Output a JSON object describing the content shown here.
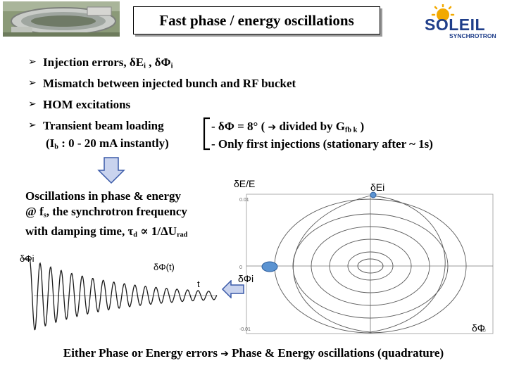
{
  "title": "Fast phase / energy oscillations",
  "logo": {
    "brand": "SOLEIL",
    "sub": "SYNCHROTRON"
  },
  "bullets": [
    {
      "pre": "Injection errors, ",
      "d1": "δ",
      "v1": "E",
      "s1": "i",
      "mid": " , ",
      "d2": "δ",
      "v2": "Φ",
      "s2": "i"
    },
    {
      "text": "Mismatch between injected bunch and RF bucket"
    },
    {
      "text": "HOM excitations"
    },
    {
      "text": "Transient beam loading"
    }
  ],
  "beam_loading_detail": {
    "open": "(I",
    "sub": "b",
    "rest": " : 0 - 20 mA instantly)"
  },
  "brace_notes": {
    "line1_pre": "- δΦ = 8° ( ",
    "line1_arrow": "➔",
    "line1_post": " divided by G",
    "line1_sub": "fb k",
    "line1_end": " )",
    "line2": "- Only first injections (stationary after ~ 1s)"
  },
  "oscillation_text": {
    "line1": "Oscillations in phase & energy",
    "line2_pre": "@ f",
    "line2_sub": "s",
    "line2_post": ", the synchrotron frequency",
    "line3_pre": "with damping time, τ",
    "line3_sub": "d",
    "line3_mid": " ∝ 1/ΔU",
    "line3_sub2": "rad"
  },
  "waveform_labels": {
    "y": "δΦi",
    "curve": "δΦ(t)",
    "t": "t"
  },
  "phase_space_labels": {
    "y_axis": "δE/E",
    "x_axis": "δΦ",
    "energy_error": "δEi",
    "phase_error": "δΦi"
  },
  "footer": {
    "pre": "Either Phase or Energy errors ",
    "arrow": "➔",
    "post": " Phase & Energy oscillations (quadrature)"
  },
  "colors": {
    "curve": "#1a1a1a",
    "arrow_fill": "#c9d3ee",
    "arrow_stroke": "#3a5aa8",
    "ellipse": "#5a5a5a",
    "dot": "#4a7fbf"
  }
}
